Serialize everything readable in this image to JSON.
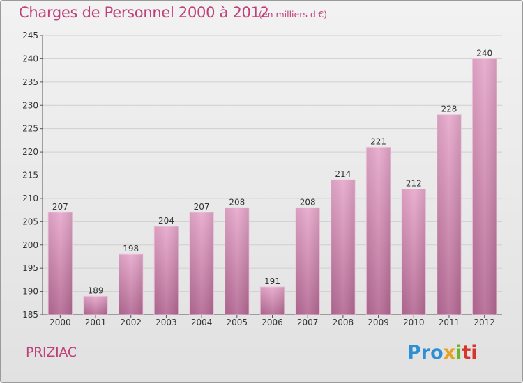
{
  "header": {
    "title": "Charges de Personnel 2000 à 2012",
    "subtitle": "(en milliers d'€)"
  },
  "footer": {
    "commune": "PRIZIAC",
    "logo": {
      "p1": "Pro",
      "p2": "x",
      "p3": "i",
      "p4": "ti"
    }
  },
  "colors": {
    "accent": "#c0407a",
    "bar_top": "#e7a9cc",
    "bar_bottom": "#b56a94"
  },
  "chart_data": {
    "type": "bar",
    "title": "Charges de Personnel 2000 à 2012",
    "subtitle": "(en milliers d'€)",
    "categories": [
      "2000",
      "2001",
      "2002",
      "2003",
      "2004",
      "2005",
      "2006",
      "2007",
      "2008",
      "2009",
      "2010",
      "2011",
      "2012"
    ],
    "values": [
      207,
      189,
      198,
      204,
      207,
      208,
      191,
      208,
      214,
      221,
      212,
      228,
      240
    ],
    "ylim": [
      185,
      245
    ],
    "yticks": [
      185,
      190,
      195,
      200,
      205,
      210,
      215,
      220,
      225,
      230,
      235,
      240,
      245
    ],
    "grid": true,
    "legend": "none"
  }
}
